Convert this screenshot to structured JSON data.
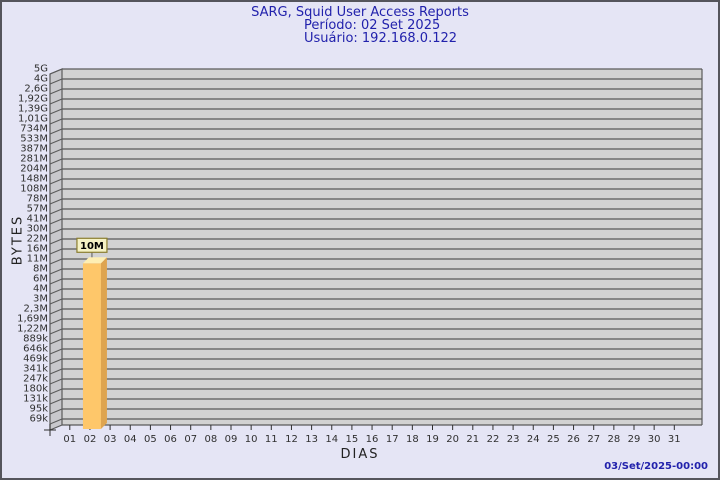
{
  "header": {
    "title": "SARG, Squid User Access Reports",
    "period": "Período: 02 Set 2025",
    "user": "Usuário: 192.168.0.122"
  },
  "footer": {
    "timestamp": "03/Set/2025-00:00"
  },
  "chart_data": {
    "type": "bar",
    "title": "SARG, Squid User Access Reports",
    "xlabel": "DIAS",
    "ylabel": "BYTES",
    "y_scale": "log",
    "grid": true,
    "legend": null,
    "y_tick_labels": [
      "5G",
      "4G",
      "2,6G",
      "1,92G",
      "1,39G",
      "1,01G",
      "734M",
      "533M",
      "387M",
      "281M",
      "204M",
      "148M",
      "108M",
      "78M",
      "57M",
      "41M",
      "30M",
      "22M",
      "16M",
      "11M",
      "8M",
      "6M",
      "4M",
      "3M",
      "2,3M",
      "1,69M",
      "1,22M",
      "889k",
      "646k",
      "469k",
      "341k",
      "247k",
      "180k",
      "131k",
      "95k",
      "69k"
    ],
    "x_categories": [
      "01",
      "02",
      "03",
      "04",
      "05",
      "06",
      "07",
      "08",
      "09",
      "10",
      "11",
      "12",
      "13",
      "14",
      "15",
      "16",
      "17",
      "18",
      "19",
      "20",
      "21",
      "22",
      "23",
      "24",
      "25",
      "26",
      "27",
      "28",
      "29",
      "30",
      "31"
    ],
    "bars": [
      {
        "day": "02",
        "value": "10M"
      }
    ],
    "colors": {
      "background": "#E5E5F5",
      "border": "#55555C",
      "title_text": "#2222AC",
      "plot_bg": "#D2D2D2",
      "wall_bg": "#C8C8CC",
      "grid": "#5A5A5A",
      "axis_text": "#303030",
      "bar_front": "#FEC76A",
      "bar_side": "#DEA44F",
      "bar_top": "#FEEFB4",
      "value_box_bg": "#F5F2C5",
      "value_box_border": "#8A7D2E",
      "value_text": "#000000",
      "timestamp_text": "#2222AC"
    }
  }
}
